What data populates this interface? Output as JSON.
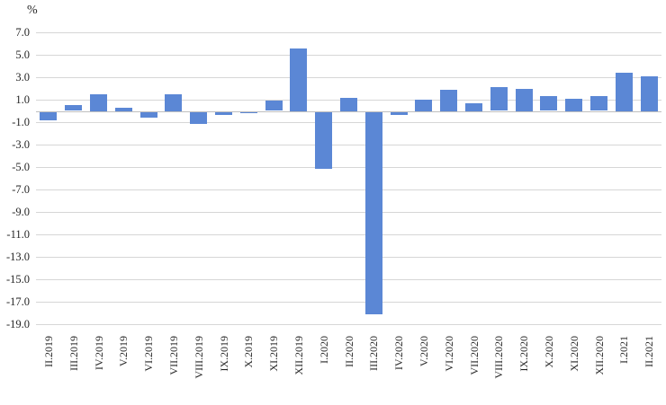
{
  "unit_label": "%",
  "colors": {
    "bar": "#5b87d5",
    "gridline": "#d6d6d6",
    "zero_line": "#bfbfbf",
    "text": "#262626",
    "background": "#ffffff"
  },
  "chart_data": {
    "type": "bar",
    "title": "",
    "xlabel": "",
    "ylabel": "%",
    "ylim": [
      -19.0,
      7.0
    ],
    "ytick_step": 2.0,
    "grid": true,
    "legend": "none",
    "ytick_labels": [
      "7.0",
      "5.0",
      "3.0",
      "1.0",
      "-1.0",
      "-3.0",
      "-5.0",
      "-7.0",
      "-9.0",
      "-11.0",
      "-13.0",
      "-15.0",
      "-17.0",
      "-19.0"
    ],
    "categories": [
      "II.2019",
      "III.2019",
      "IV.2019",
      "V.2019",
      "VI.2019",
      "VII.2019",
      "VIII.2019",
      "IX.2019",
      "X.2019",
      "XI.2019",
      "XII.2019",
      "I.2020",
      "II.2020",
      "III.2020",
      "IV.2020",
      "V.2020",
      "VI.2020",
      "VII.2020",
      "VIII.2020",
      "IX.2020",
      "X.2020",
      "XI.2020",
      "XII.2020",
      "I.2021",
      "II.2021"
    ],
    "values": [
      -0.7,
      0.5,
      1.5,
      0.3,
      -0.5,
      1.5,
      -1.0,
      -0.2,
      -0.1,
      0.9,
      5.6,
      -5.0,
      1.2,
      -18.0,
      -0.2,
      1.0,
      1.9,
      0.7,
      2.1,
      2.0,
      1.3,
      1.1,
      1.3,
      3.4,
      3.1
    ]
  }
}
